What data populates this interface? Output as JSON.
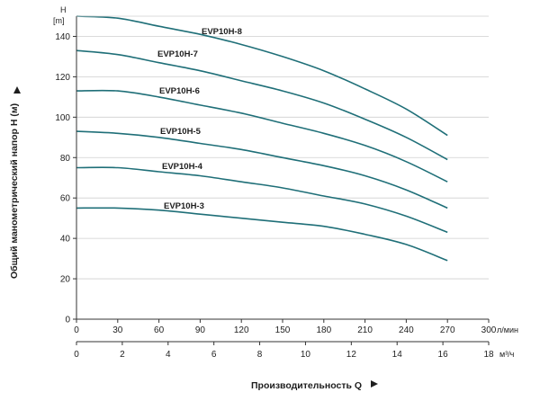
{
  "chart_data": {
    "type": "line",
    "title": "",
    "ylabel": "Общий манометрический напор H (м)",
    "xlabel": "Производительность Q",
    "y_axis": {
      "symbol": "H",
      "unit": "[m]",
      "ticks": [
        0,
        20,
        40,
        60,
        80,
        100,
        120,
        140
      ],
      "ylim": [
        0,
        150
      ]
    },
    "x_axis_primary": {
      "unit": "л/мин",
      "ticks": [
        0,
        30,
        60,
        90,
        120,
        150,
        180,
        210,
        240,
        270,
        300
      ],
      "xlim": [
        0,
        300
      ]
    },
    "x_axis_secondary": {
      "unit": "м³/ч",
      "ticks": [
        0,
        2,
        4,
        6,
        8,
        10,
        12,
        14,
        16,
        18
      ],
      "xlim": [
        0,
        18
      ]
    },
    "grid": "horizontal",
    "line_color": "#1f6f78",
    "series": [
      {
        "name": "EVP10H-8",
        "x": [
          0,
          30,
          60,
          90,
          120,
          150,
          180,
          210,
          240,
          270
        ],
        "y": [
          150,
          149,
          145,
          141,
          136,
          130,
          123,
          114,
          104,
          91
        ]
      },
      {
        "name": "EVP10H-7",
        "x": [
          0,
          30,
          60,
          90,
          120,
          150,
          180,
          210,
          240,
          270
        ],
        "y": [
          133,
          131,
          127,
          123,
          118,
          113,
          107,
          99,
          90,
          79
        ]
      },
      {
        "name": "EVP10H-6",
        "x": [
          0,
          30,
          60,
          90,
          120,
          150,
          180,
          210,
          240,
          270
        ],
        "y": [
          113,
          113,
          110,
          106,
          102,
          97,
          92,
          86,
          78,
          68
        ]
      },
      {
        "name": "EVP10H-5",
        "x": [
          0,
          30,
          60,
          90,
          120,
          150,
          180,
          210,
          240,
          270
        ],
        "y": [
          93,
          92,
          90,
          87,
          84,
          80,
          76,
          71,
          64,
          55
        ]
      },
      {
        "name": "EVP10H-4",
        "x": [
          0,
          30,
          60,
          90,
          120,
          150,
          180,
          210,
          240,
          270
        ],
        "y": [
          75,
          75,
          73,
          71,
          68,
          65,
          61,
          57,
          51,
          43
        ]
      },
      {
        "name": "EVP10H-3",
        "x": [
          0,
          30,
          60,
          90,
          120,
          150,
          180,
          210,
          240,
          270
        ],
        "y": [
          55,
          55,
          54,
          52,
          50,
          48,
          46,
          42,
          37,
          29
        ]
      }
    ]
  }
}
